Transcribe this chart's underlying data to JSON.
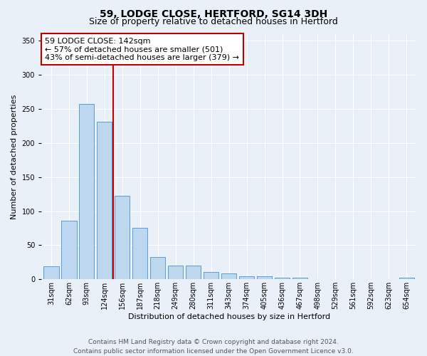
{
  "title": "59, LODGE CLOSE, HERTFORD, SG14 3DH",
  "subtitle": "Size of property relative to detached houses in Hertford",
  "xlabel": "Distribution of detached houses by size in Hertford",
  "ylabel": "Number of detached properties",
  "categories": [
    "31sqm",
    "62sqm",
    "93sqm",
    "124sqm",
    "156sqm",
    "187sqm",
    "218sqm",
    "249sqm",
    "280sqm",
    "311sqm",
    "343sqm",
    "374sqm",
    "405sqm",
    "436sqm",
    "467sqm",
    "498sqm",
    "529sqm",
    "561sqm",
    "592sqm",
    "623sqm",
    "654sqm"
  ],
  "values": [
    19,
    86,
    257,
    231,
    122,
    76,
    33,
    20,
    20,
    11,
    9,
    4,
    4,
    2,
    2,
    0,
    0,
    0,
    0,
    0,
    2
  ],
  "bar_color": "#bdd7ee",
  "bar_edge_color": "#5b9bd5",
  "vline_color": "#c00000",
  "annotation_line1": "59 LODGE CLOSE: 142sqm",
  "annotation_line2": "← 57% of detached houses are smaller (501)",
  "annotation_line3": "43% of semi-detached houses are larger (379) →",
  "annotation_box_color": "#ffffff",
  "annotation_box_edge": "#c00000",
  "ylim": [
    0,
    360
  ],
  "yticks": [
    0,
    50,
    100,
    150,
    200,
    250,
    300,
    350
  ],
  "footer_line1": "Contains HM Land Registry data © Crown copyright and database right 2024.",
  "footer_line2": "Contains public sector information licensed under the Open Government Licence v3.0.",
  "bg_color": "#eaf0f8",
  "plot_bg_color": "#eaf0f8",
  "title_fontsize": 10,
  "subtitle_fontsize": 9,
  "axis_fontsize": 8,
  "tick_fontsize": 7,
  "footer_fontsize": 6.5,
  "annotation_fontsize": 8
}
